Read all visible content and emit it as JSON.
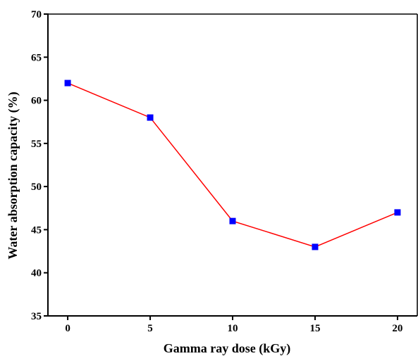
{
  "chart_data": {
    "type": "line",
    "title": "",
    "xlabel": "Gamma ray dose (kGy)",
    "ylabel": "Water absorption capacity (%)",
    "x": [
      0,
      5,
      10,
      15,
      20
    ],
    "series": [
      {
        "values": [
          62,
          58,
          46,
          43,
          47
        ]
      }
    ],
    "xlim": [
      -1.2,
      21.2
    ],
    "ylim": [
      35,
      70
    ],
    "xticks": [
      0,
      5,
      10,
      15,
      20
    ],
    "yticks": [
      35,
      40,
      45,
      50,
      55,
      60,
      65,
      70
    ],
    "xtick_labels": [
      "0",
      "5",
      "10",
      "15",
      "20"
    ],
    "ytick_labels": [
      "35",
      "40",
      "45",
      "50",
      "55",
      "60",
      "65",
      "70"
    ],
    "grid": false,
    "legend": "none",
    "line_color": "#ff0000",
    "marker_color": "#0000ff",
    "marker": "square"
  }
}
